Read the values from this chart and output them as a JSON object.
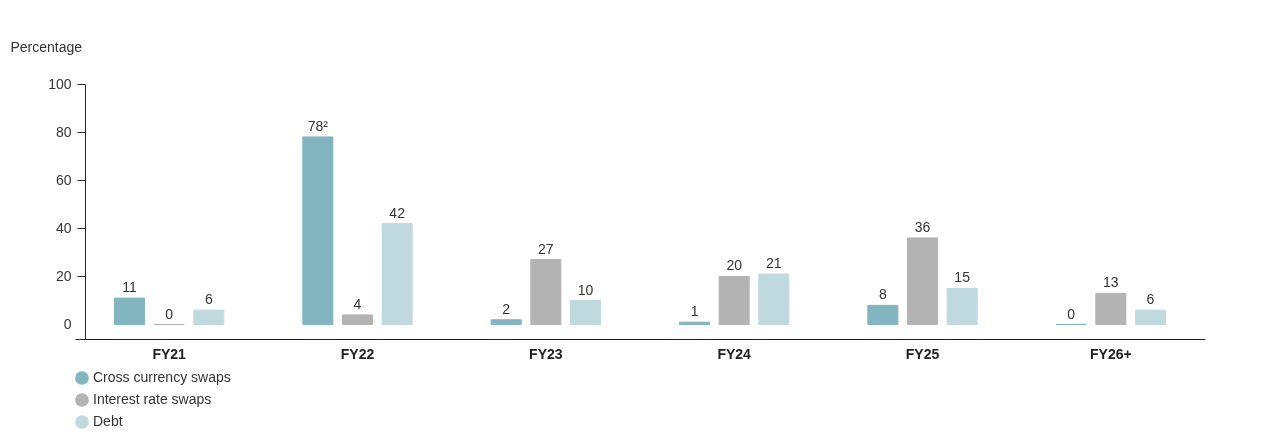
{
  "chart_data": {
    "type": "bar",
    "ylabel": "Percentage",
    "categories": [
      "FY21",
      "FY22",
      "FY23",
      "FY24",
      "FY25",
      "FY26+"
    ],
    "series": [
      {
        "name": "Cross currency swaps",
        "color": "#82b5bf",
        "values": [
          11,
          78,
          2,
          1,
          8,
          0
        ],
        "value_labels": [
          "11",
          "78²",
          "2",
          "1",
          "8",
          "0"
        ]
      },
      {
        "name": "Interest rate swaps",
        "color": "#b3b3b4",
        "values": [
          0,
          4,
          27,
          20,
          36,
          13
        ],
        "value_labels": [
          "0",
          "4",
          "27",
          "20",
          "36",
          "13"
        ]
      },
      {
        "name": "Debt",
        "color": "#c0d9df",
        "values": [
          6,
          42,
          10,
          21,
          15,
          6
        ],
        "value_labels": [
          "6",
          "42",
          "10",
          "21",
          "15",
          "6"
        ]
      }
    ],
    "ylim": [
      -6,
      100
    ],
    "yticks": [
      0,
      20,
      40,
      60,
      80,
      100
    ],
    "grid": false,
    "legend": "bottom left"
  }
}
